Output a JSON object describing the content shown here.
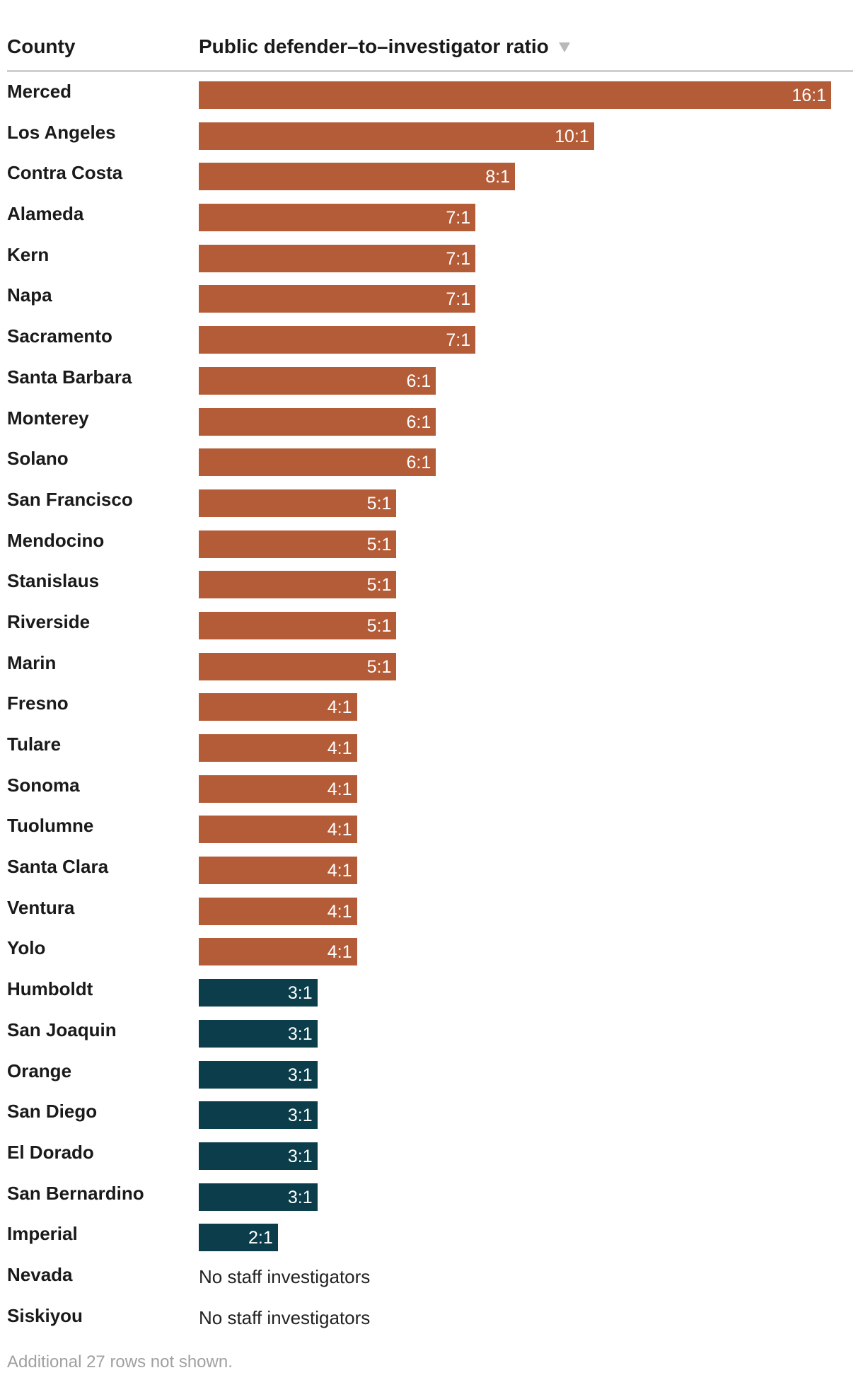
{
  "header": {
    "county_label": "County",
    "ratio_label": "Public defender–to–investigator ratio"
  },
  "footnote": "Additional 27 rows not shown.",
  "colors": {
    "high": "#b35c37",
    "low": "#0b3d4b"
  },
  "chart_data": {
    "type": "bar",
    "orientation": "horizontal",
    "xlim": [
      0,
      16
    ],
    "categories": [
      "Merced",
      "Los Angeles",
      "Contra Costa",
      "Alameda",
      "Kern",
      "Napa",
      "Sacramento",
      "Santa Barbara",
      "Monterey",
      "Solano",
      "San Francisco",
      "Mendocino",
      "Stanislaus",
      "Riverside",
      "Marin",
      "Fresno",
      "Tulare",
      "Sonoma",
      "Tuolumne",
      "Santa Clara",
      "Ventura",
      "Yolo",
      "Humboldt",
      "San Joaquin",
      "Orange",
      "San Diego",
      "El Dorado",
      "San Bernardino",
      "Imperial",
      "Nevada",
      "Siskiyou"
    ],
    "values": [
      16,
      10,
      8,
      7,
      7,
      7,
      7,
      6,
      6,
      6,
      5,
      5,
      5,
      5,
      5,
      4,
      4,
      4,
      4,
      4,
      4,
      4,
      3,
      3,
      3,
      3,
      3,
      3,
      2,
      null,
      null
    ],
    "labels": [
      "16:1",
      "10:1",
      "8:1",
      "7:1",
      "7:1",
      "7:1",
      "7:1",
      "6:1",
      "6:1",
      "6:1",
      "5:1",
      "5:1",
      "5:1",
      "5:1",
      "5:1",
      "4:1",
      "4:1",
      "4:1",
      "4:1",
      "4:1",
      "4:1",
      "4:1",
      "3:1",
      "3:1",
      "3:1",
      "3:1",
      "3:1",
      "3:1",
      "2:1",
      "No staff investigators",
      "No staff investigators"
    ],
    "color_threshold": 4
  }
}
